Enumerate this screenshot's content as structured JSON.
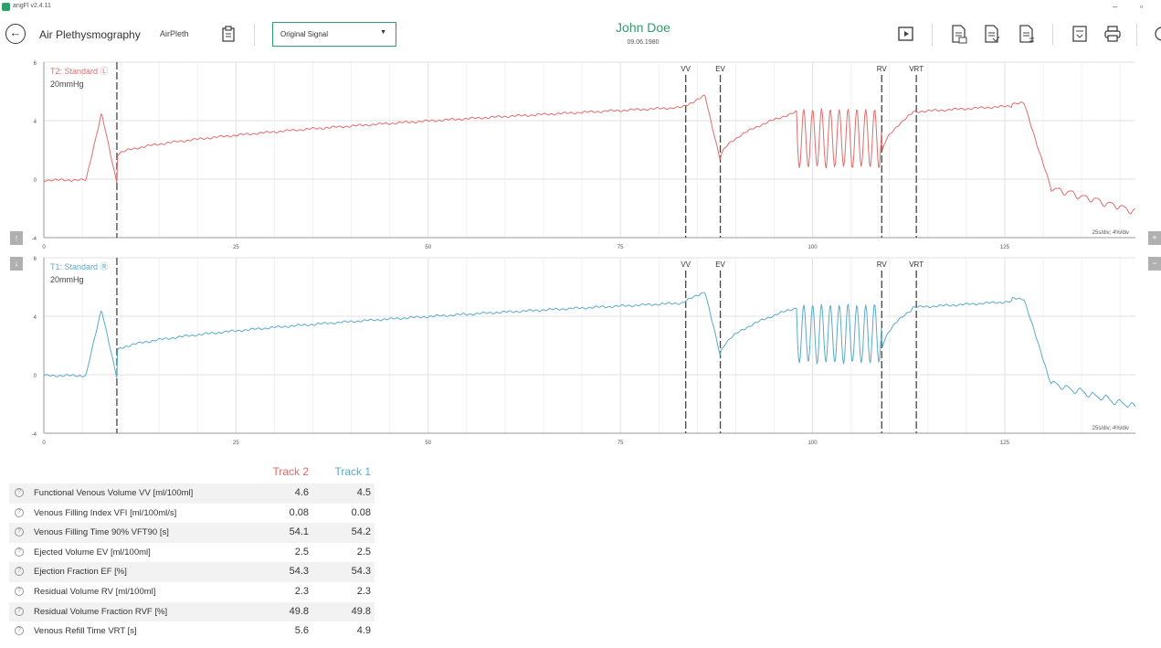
{
  "window": {
    "title": "angFl v2.4.11",
    "minimize": "–",
    "maximize": "▫"
  },
  "header": {
    "module_title": "Air Plethysmography",
    "module_short": "AirPleth",
    "signal_select": {
      "selected": "Original Signal"
    },
    "patient": {
      "name": "John Doe",
      "dob": "09.06.1980"
    }
  },
  "colors": {
    "accent": "#2e9e6a",
    "track2": "#e06c6c",
    "track1": "#5aaac8",
    "grid": "#e6e6e6"
  },
  "charts": [
    {
      "id": "t2",
      "label": "T2: Standard ",
      "label_marker": "Ⓛ",
      "units": "20mmHg",
      "scale": "25s/div; 4%/div",
      "color": "#e06c6c",
      "y_ticks": [
        "6",
        "4",
        "0",
        "-4"
      ],
      "x_ticks": [
        "0",
        "25",
        "50",
        "75",
        "100",
        "125"
      ],
      "markers": [
        "VV",
        "EV",
        "RV",
        "VRT"
      ]
    },
    {
      "id": "t1",
      "label": "T1: Standard ",
      "label_marker": "Ⓡ",
      "units": "20mmHg",
      "scale": "25s/div; 4%/div",
      "color": "#5aaac8",
      "y_ticks": [
        "6",
        "4",
        "0",
        "-4"
      ],
      "x_ticks": [
        "0",
        "25",
        "50",
        "75",
        "100",
        "125"
      ],
      "markers": [
        "VV",
        "EV",
        "RV",
        "VRT"
      ]
    }
  ],
  "side_buttons": {
    "up": "↑",
    "down": "↓",
    "plus": "+",
    "minus": "−"
  },
  "results": {
    "col_track2": "Track 2",
    "col_track1": "Track 1",
    "rows": [
      {
        "label": "Functional Venous Volume VV [ml/100ml]",
        "t2": "4.6",
        "t1": "4.5"
      },
      {
        "label": "Venous Filling Index VFI [ml/100ml/s]",
        "t2": "0.08",
        "t1": "0.08"
      },
      {
        "label": "Venous Filling Time 90% VFT90 [s]",
        "t2": "54.1",
        "t1": "54.2"
      },
      {
        "label": "Ejected Volume EV [ml/100ml]",
        "t2": "2.5",
        "t1": "2.5"
      },
      {
        "label": "Ejection Fraction EF [%]",
        "t2": "54.3",
        "t1": "54.3"
      },
      {
        "label": "Residual Volume RV [ml/100ml]",
        "t2": "2.3",
        "t1": "2.3"
      },
      {
        "label": "Residual Volume Fraction RVF [%]",
        "t2": "49.8",
        "t1": "49.8"
      },
      {
        "label": "Venous Refill Time VRT [s]",
        "t2": "5.6",
        "t1": "4.9"
      }
    ]
  }
}
